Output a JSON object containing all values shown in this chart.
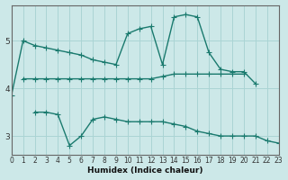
{
  "xlabel": "Humidex (Indice chaleur)",
  "bg_color": "#cce8e8",
  "line_color": "#1a7a6e",
  "grid_color": "#aad4d4",
  "xlim": [
    0,
    23
  ],
  "ylim": [
    2.6,
    5.75
  ],
  "yticks": [
    3,
    4,
    5
  ],
  "xticks": [
    0,
    1,
    2,
    3,
    4,
    5,
    6,
    7,
    8,
    9,
    10,
    11,
    12,
    13,
    14,
    15,
    16,
    17,
    18,
    19,
    20,
    21,
    22,
    23
  ],
  "seg1_x": [
    0,
    1,
    2,
    3,
    4,
    5,
    6,
    7,
    8,
    9,
    10,
    11,
    12,
    13,
    14,
    15,
    16,
    17,
    18,
    19,
    20,
    21
  ],
  "seg1_y": [
    3.85,
    5.0,
    4.9,
    4.85,
    4.8,
    4.75,
    4.7,
    4.6,
    4.55,
    4.5,
    5.15,
    5.25,
    5.3,
    4.5,
    5.5,
    5.55,
    5.5,
    4.75,
    4.4,
    4.35,
    4.35,
    4.1
  ],
  "seg2_x": [
    1,
    2,
    3,
    4,
    5,
    6,
    7,
    8,
    9,
    10,
    11,
    12,
    13,
    14,
    15,
    16,
    17,
    18,
    19,
    20
  ],
  "seg2_y": [
    4.2,
    4.2,
    4.2,
    4.2,
    4.2,
    4.2,
    4.2,
    4.2,
    4.2,
    4.2,
    4.2,
    4.2,
    4.25,
    4.3,
    4.3,
    4.3,
    4.3,
    4.3,
    4.3,
    4.3
  ],
  "seg3_x": [
    2,
    3,
    4,
    5,
    6,
    7,
    8,
    9,
    10,
    11,
    12,
    13,
    14,
    15,
    16,
    17,
    18,
    19,
    20,
    21,
    22,
    23
  ],
  "seg3_y": [
    3.5,
    3.5,
    3.45,
    2.8,
    3.0,
    3.35,
    3.4,
    3.35,
    3.3,
    3.3,
    3.3,
    3.3,
    3.25,
    3.2,
    3.1,
    3.05,
    3.0,
    3.0,
    3.0,
    3.0,
    2.9,
    2.85
  ]
}
